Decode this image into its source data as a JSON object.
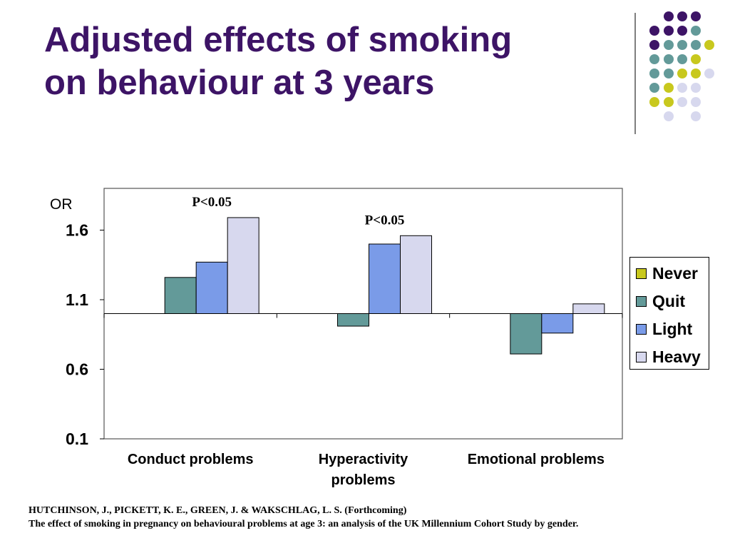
{
  "title": {
    "line1": "Adjusted effects of smoking",
    "line2": "on behaviour at 3 years"
  },
  "colors": {
    "title": "#3d1466",
    "never": "#c8c81e",
    "quit": "#639a99",
    "light": "#7a9be8",
    "heavy": "#d7d8ee",
    "dot_purple": "#3d1466",
    "dot_teal": "#639a99",
    "dot_yellow": "#c8c81e",
    "dot_lavender": "#d7d8ee"
  },
  "chart_data": {
    "type": "bar",
    "ylabel": "OR",
    "ylim": [
      0.1,
      1.9
    ],
    "baseline": 1.0,
    "yticks": [
      "1.6",
      "1.1",
      "0.6",
      "0.1"
    ],
    "categories": [
      "Conduct problems",
      "Hyperactivity problems",
      "Emotional problems"
    ],
    "category_labels": [
      [
        "Conduct problems"
      ],
      [
        "Hyperactivity",
        "problems"
      ],
      [
        "Emotional problems"
      ]
    ],
    "series": [
      {
        "name": "Never",
        "color": "#c8c81e",
        "values": [
          1.0,
          1.0,
          1.0
        ]
      },
      {
        "name": "Quit",
        "color": "#639a99",
        "values": [
          1.26,
          0.91,
          0.71
        ]
      },
      {
        "name": "Light",
        "color": "#7a9be8",
        "values": [
          1.37,
          1.5,
          0.86
        ]
      },
      {
        "name": "Heavy",
        "color": "#d7d8ee",
        "values": [
          1.69,
          1.56,
          1.07
        ]
      }
    ],
    "annotations": [
      {
        "text": "P<0.05",
        "category": 0
      },
      {
        "text": "P<0.05",
        "category": 1
      }
    ],
    "legend_position": "right",
    "grid": false
  },
  "legend": {
    "items": [
      "Never",
      "Quit",
      "Light",
      "Heavy"
    ]
  },
  "citation": {
    "line1": "HUTCHINSON, J., PICKETT, K. E., GREEN, J. & WAKSCHLAG, L. S. (Forthcoming)",
    "line2": "The effect of smoking in pregnancy on behavioural problems at age 3: an analysis of the UK Millennium Cohort Study by gender."
  }
}
